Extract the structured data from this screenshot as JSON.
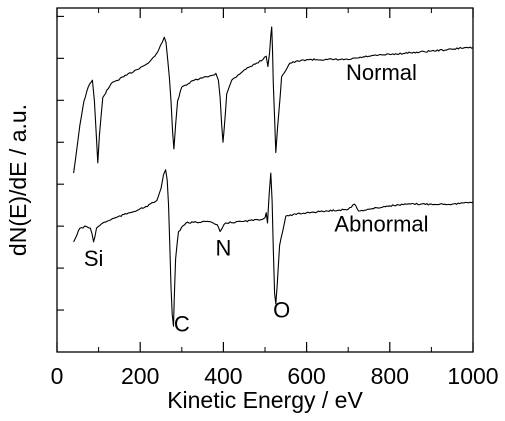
{
  "chart_data": {
    "type": "line",
    "xlabel": "Kinetic Energy / eV",
    "ylabel": "dN(E)/dE / a.u.",
    "xlim": [
      0,
      1000
    ],
    "ylim": [
      0,
      10
    ],
    "x_ticks": [
      "0",
      "200",
      "400",
      "600",
      "800",
      "1000"
    ],
    "y_tick_count": 8,
    "y_tick_labels_shown": false,
    "grid": false,
    "series": [
      {
        "name": "Normal",
        "color": "#000000",
        "points": [
          [
            40,
            5.2
          ],
          [
            55,
            6.6
          ],
          [
            65,
            7.3
          ],
          [
            75,
            7.7
          ],
          [
            85,
            7.9
          ],
          [
            90,
            7.3
          ],
          [
            95,
            6.2
          ],
          [
            98,
            5.5
          ],
          [
            102,
            6.3
          ],
          [
            110,
            7.4
          ],
          [
            130,
            7.8
          ],
          [
            160,
            8.0
          ],
          [
            190,
            8.2
          ],
          [
            220,
            8.4
          ],
          [
            235,
            8.6
          ],
          [
            245,
            8.8
          ],
          [
            253,
            9.0
          ],
          [
            258,
            9.15
          ],
          [
            262,
            9.0
          ],
          [
            266,
            8.5
          ],
          [
            270,
            8.0
          ],
          [
            274,
            7.3
          ],
          [
            278,
            6.4
          ],
          [
            281,
            5.9
          ],
          [
            285,
            6.6
          ],
          [
            290,
            7.3
          ],
          [
            300,
            7.7
          ],
          [
            330,
            7.9
          ],
          [
            360,
            8.0
          ],
          [
            375,
            8.05
          ],
          [
            382,
            8.1
          ],
          [
            388,
            7.9
          ],
          [
            392,
            7.4
          ],
          [
            396,
            6.6
          ],
          [
            399,
            6.1
          ],
          [
            402,
            6.5
          ],
          [
            408,
            7.5
          ],
          [
            420,
            7.9
          ],
          [
            450,
            8.2
          ],
          [
            480,
            8.4
          ],
          [
            495,
            8.5
          ],
          [
            503,
            8.6
          ],
          [
            507,
            8.3
          ],
          [
            511,
            8.7
          ],
          [
            514,
            9.2
          ],
          [
            516,
            9.45
          ],
          [
            518,
            8.8
          ],
          [
            520,
            7.8
          ],
          [
            523,
            6.8
          ],
          [
            526,
            5.8
          ],
          [
            530,
            6.5
          ],
          [
            540,
            8.0
          ],
          [
            560,
            8.4
          ],
          [
            600,
            8.5
          ],
          [
            650,
            8.5
          ],
          [
            700,
            8.5
          ],
          [
            750,
            8.6
          ],
          [
            800,
            8.65
          ],
          [
            850,
            8.7
          ],
          [
            900,
            8.75
          ],
          [
            950,
            8.8
          ],
          [
            980,
            8.85
          ],
          [
            1000,
            8.85
          ]
        ]
      },
      {
        "name": "Abnormal",
        "color": "#000000",
        "points": [
          [
            40,
            3.2
          ],
          [
            55,
            3.6
          ],
          [
            70,
            3.65
          ],
          [
            80,
            3.6
          ],
          [
            84,
            3.45
          ],
          [
            88,
            3.2
          ],
          [
            91,
            3.35
          ],
          [
            95,
            3.6
          ],
          [
            110,
            3.75
          ],
          [
            140,
            3.9
          ],
          [
            175,
            4.05
          ],
          [
            210,
            4.2
          ],
          [
            240,
            4.4
          ],
          [
            250,
            4.75
          ],
          [
            256,
            5.15
          ],
          [
            261,
            5.3
          ],
          [
            265,
            5.0
          ],
          [
            268,
            4.3
          ],
          [
            271,
            3.2
          ],
          [
            274,
            1.9
          ],
          [
            277,
            1.1
          ],
          [
            280,
            0.75
          ],
          [
            282,
            1.6
          ],
          [
            285,
            2.7
          ],
          [
            292,
            3.5
          ],
          [
            310,
            3.75
          ],
          [
            360,
            3.8
          ],
          [
            385,
            3.7
          ],
          [
            392,
            3.5
          ],
          [
            397,
            3.6
          ],
          [
            405,
            3.75
          ],
          [
            450,
            3.8
          ],
          [
            490,
            3.85
          ],
          [
            500,
            3.9
          ],
          [
            503,
            4.05
          ],
          [
            506,
            3.75
          ],
          [
            510,
            4.6
          ],
          [
            514,
            5.2
          ],
          [
            517,
            4.4
          ],
          [
            520,
            3.0
          ],
          [
            523,
            1.7
          ],
          [
            526,
            1.4
          ],
          [
            529,
            1.9
          ],
          [
            535,
            3.1
          ],
          [
            550,
            3.95
          ],
          [
            600,
            4.05
          ],
          [
            650,
            4.1
          ],
          [
            700,
            4.15
          ],
          [
            715,
            4.3
          ],
          [
            725,
            4.1
          ],
          [
            800,
            4.25
          ],
          [
            850,
            4.3
          ],
          [
            900,
            4.3
          ],
          [
            950,
            4.3
          ],
          [
            1000,
            4.35
          ]
        ]
      }
    ],
    "annotations": [
      {
        "text": "Si",
        "x": 88,
        "y": 2.5
      },
      {
        "text": "C",
        "x": 300,
        "y": 0.6
      },
      {
        "text": "N",
        "x": 400,
        "y": 2.8
      },
      {
        "text": "O",
        "x": 540,
        "y": 1.0
      }
    ]
  }
}
